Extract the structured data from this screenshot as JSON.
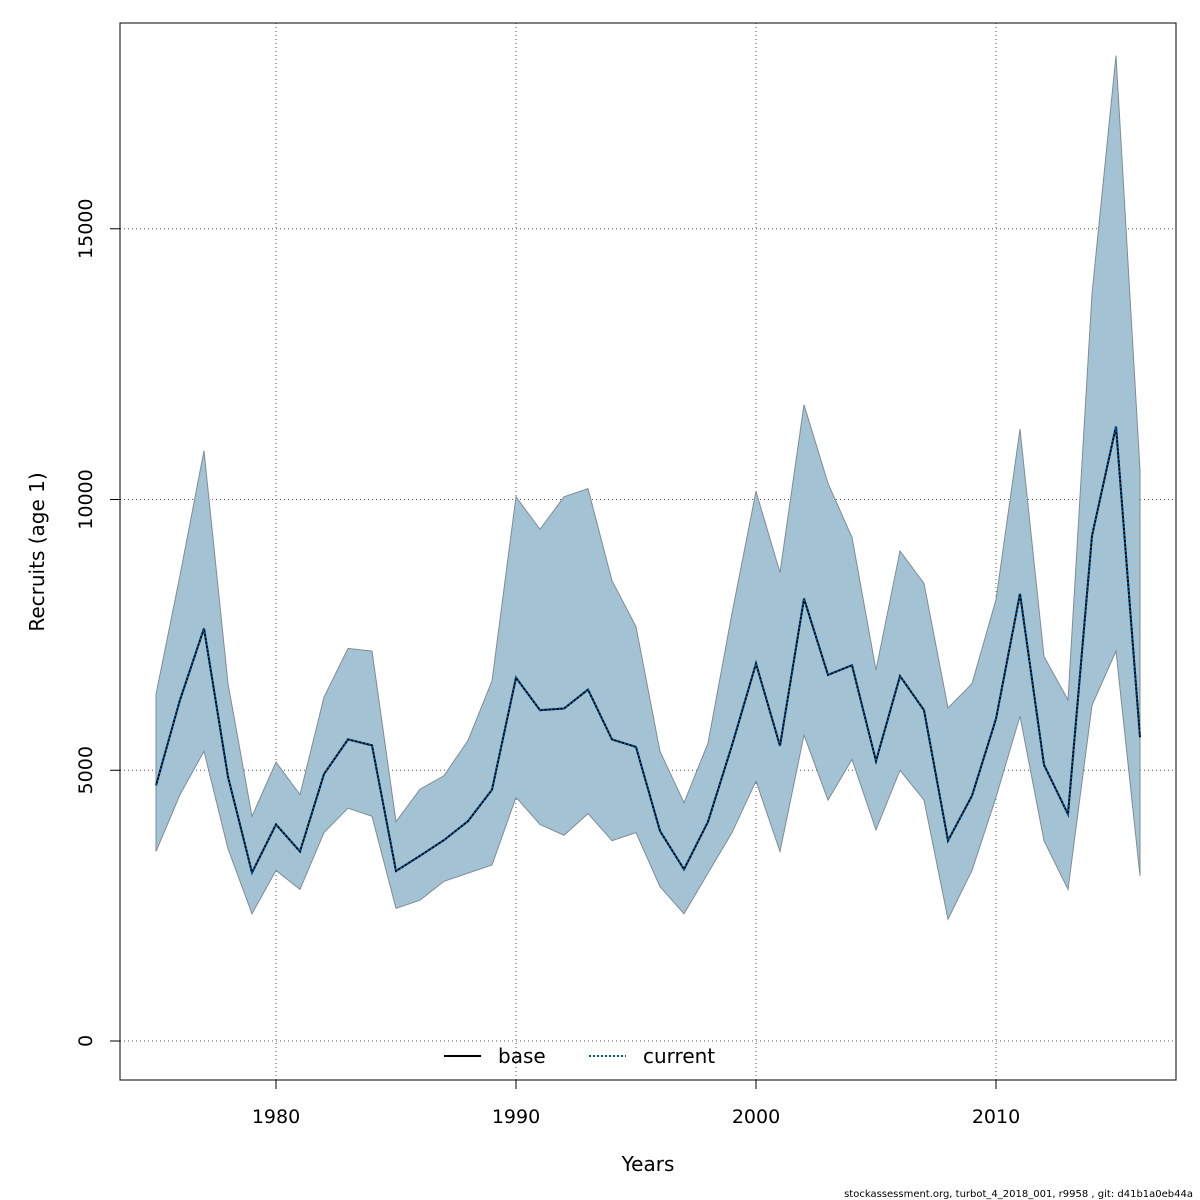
{
  "chart_data": {
    "type": "line",
    "title": "",
    "xlabel": "Years",
    "ylabel": "Recruits (age 1)",
    "xlim": [
      1973.5,
      2017.5
    ],
    "ylim": [
      -720,
      18800
    ],
    "x_ticks": [
      1980,
      1990,
      2000,
      2010
    ],
    "y_ticks": [
      0,
      5000,
      10000,
      15000
    ],
    "x_tick_labels": [
      "1980",
      "1990",
      "2000",
      "2010"
    ],
    "y_tick_labels": [
      "0",
      "5000",
      "10000",
      "15000"
    ],
    "grid": true,
    "legend_position": "bottom-center",
    "x": [
      1975,
      1976,
      1977,
      1978,
      1979,
      1980,
      1981,
      1982,
      1983,
      1984,
      1985,
      1986,
      1987,
      1988,
      1989,
      1990,
      1991,
      1992,
      1993,
      1994,
      1995,
      1996,
      1997,
      1998,
      1999,
      2000,
      2001,
      2002,
      2003,
      2004,
      2005,
      2006,
      2007,
      2008,
      2009,
      2010,
      2011,
      2012,
      2013,
      2014,
      2015,
      2016
    ],
    "band": {
      "color": "#a3c3d5",
      "upper": [
        6400,
        8600,
        10900,
        6600,
        4150,
        5150,
        4550,
        6350,
        7250,
        7200,
        4050,
        4650,
        4900,
        5550,
        6650,
        10050,
        9450,
        10050,
        10200,
        8500,
        7650,
        5350,
        4400,
        5500,
        7900,
        10150,
        8650,
        11750,
        10300,
        9300,
        6850,
        9050,
        8450,
        6150,
        6600,
        8150,
        11300,
        7100,
        6300,
        13800,
        18200,
        10550
      ],
      "lower": [
        3500,
        4550,
        5350,
        3550,
        2350,
        3150,
        2800,
        3850,
        4300,
        4150,
        2450,
        2600,
        2950,
        3100,
        3250,
        4500,
        4000,
        3800,
        4200,
        3700,
        3850,
        2850,
        2350,
        3100,
        3850,
        4800,
        3500,
        5650,
        4450,
        5200,
        3900,
        5000,
        4450,
        2250,
        3150,
        4500,
        6000,
        3700,
        2800,
        6200,
        7200,
        3050
      ]
    },
    "series": [
      {
        "name": "base",
        "color": "#000000",
        "style": "solid",
        "values": [
          4720,
          6300,
          7620,
          4880,
          3110,
          4000,
          3500,
          4930,
          5570,
          5460,
          3140,
          3420,
          3710,
          4060,
          4640,
          6710,
          6110,
          6140,
          6490,
          5570,
          5430,
          3880,
          3170,
          4050,
          5460,
          6970,
          5450,
          8170,
          6760,
          6940,
          5170,
          6740,
          6110,
          3700,
          4530,
          5950,
          8260,
          5100,
          4190,
          9330,
          11350,
          5610
        ]
      },
      {
        "name": "current",
        "color": "#005a9c",
        "style": "dotted",
        "values": [
          4720,
          6300,
          7620,
          4880,
          3110,
          4000,
          3500,
          4930,
          5570,
          5460,
          3140,
          3420,
          3710,
          4060,
          4640,
          6710,
          6110,
          6140,
          6490,
          5570,
          5430,
          3880,
          3170,
          4050,
          5460,
          6970,
          5450,
          8170,
          6760,
          6940,
          5170,
          6740,
          6110,
          3700,
          4530,
          5950,
          8260,
          5100,
          4190,
          9330,
          11350,
          5610
        ]
      }
    ],
    "legend": [
      {
        "label": "base"
      },
      {
        "label": "current"
      }
    ]
  },
  "footer": "stockassessment.org, turbot_4_2018_001, r9958 , git: d41b1a0eb44a"
}
